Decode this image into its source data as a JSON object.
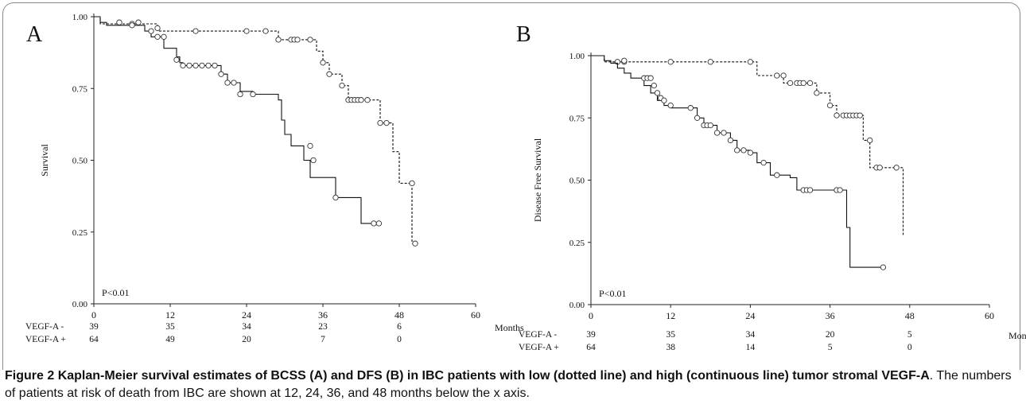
{
  "figure_label": "Figure 2",
  "caption_title": "Kaplan-Meier survival estimates of BCSS (A) and DFS (B) in IBC patients with low (dotted line) and high (continuous line) tumor stromal VEGF-A",
  "caption_text": ". The numbers of patients at risk of death from IBC are shown at 12, 24, 36, and 48 months below the x axis.",
  "chart_data": [
    {
      "type": "line",
      "panel_label": "A",
      "ylabel": "Survival",
      "xlabel": "Months",
      "xlim": [
        0,
        60
      ],
      "ylim": [
        0,
        1
      ],
      "xticks": [
        "0",
        "12",
        "24",
        "36",
        "48",
        "60"
      ],
      "yticks": [
        "0.00",
        "0.25",
        "0.50",
        "0.75",
        "1.00"
      ],
      "pvalue": "P<0.01",
      "grid": false,
      "series": [
        {
          "name": "VEGF-A -",
          "style": "dotted",
          "steps": [
            [
              0,
              1.0
            ],
            [
              1,
              0.975
            ],
            [
              10,
              0.95
            ],
            [
              25,
              0.95
            ],
            [
              27,
              0.95
            ],
            [
              29,
              0.92
            ],
            [
              35,
              0.88
            ],
            [
              36,
              0.84
            ],
            [
              37,
              0.8
            ],
            [
              39,
              0.76
            ],
            [
              40,
              0.71
            ],
            [
              44,
              0.71
            ],
            [
              45,
              0.63
            ],
            [
              47,
              0.53
            ],
            [
              48,
              0.42
            ],
            [
              50,
              0.21
            ]
          ],
          "censored": [
            [
              4,
              0.98
            ],
            [
              6,
              0.975
            ],
            [
              7,
              0.98
            ],
            [
              10,
              0.96
            ],
            [
              16,
              0.95
            ],
            [
              24,
              0.95
            ],
            [
              27,
              0.95
            ],
            [
              29,
              0.92
            ],
            [
              31,
              0.92
            ],
            [
              31.5,
              0.92
            ],
            [
              32,
              0.92
            ],
            [
              34,
              0.92
            ],
            [
              36,
              0.84
            ],
            [
              37,
              0.8
            ],
            [
              39,
              0.76
            ],
            [
              40,
              0.71
            ],
            [
              40.5,
              0.71
            ],
            [
              41,
              0.71
            ],
            [
              41.5,
              0.71
            ],
            [
              42,
              0.71
            ],
            [
              43,
              0.71
            ],
            [
              45,
              0.63
            ],
            [
              46,
              0.63
            ],
            [
              50,
              0.42
            ],
            [
              50.5,
              0.21
            ]
          ]
        },
        {
          "name": "VEGF-A +",
          "style": "solid",
          "steps": [
            [
              0,
              1.0
            ],
            [
              1,
              0.98
            ],
            [
              2,
              0.97
            ],
            [
              8,
              0.95
            ],
            [
              9,
              0.93
            ],
            [
              11,
              0.89
            ],
            [
              13,
              0.86
            ],
            [
              13.5,
              0.84
            ],
            [
              14,
              0.83
            ],
            [
              20,
              0.8
            ],
            [
              21,
              0.77
            ],
            [
              22,
              0.77
            ],
            [
              23,
              0.74
            ],
            [
              25,
              0.73
            ],
            [
              29,
              0.71
            ],
            [
              29.5,
              0.64
            ],
            [
              30,
              0.59
            ],
            [
              31,
              0.55
            ],
            [
              33,
              0.5
            ],
            [
              34,
              0.44
            ],
            [
              37,
              0.44
            ],
            [
              38,
              0.37
            ],
            [
              40,
              0.37
            ],
            [
              42,
              0.28
            ],
            [
              45,
              0.28
            ]
          ],
          "censored": [
            [
              6,
              0.97
            ],
            [
              9,
              0.95
            ],
            [
              10,
              0.93
            ],
            [
              11,
              0.93
            ],
            [
              13,
              0.85
            ],
            [
              14,
              0.83
            ],
            [
              15,
              0.83
            ],
            [
              16,
              0.83
            ],
            [
              17,
              0.83
            ],
            [
              18,
              0.83
            ],
            [
              19,
              0.83
            ],
            [
              20,
              0.8
            ],
            [
              21,
              0.77
            ],
            [
              22,
              0.77
            ],
            [
              23,
              0.73
            ],
            [
              25,
              0.73
            ],
            [
              34,
              0.55
            ],
            [
              34.5,
              0.5
            ],
            [
              38,
              0.37
            ],
            [
              44,
              0.28
            ],
            [
              44.8,
              0.28
            ]
          ]
        }
      ],
      "risk_table": {
        "times": [
          0,
          12,
          24,
          36,
          48
        ],
        "rows": [
          {
            "label": "VEGF-A -",
            "values": [
              "39",
              "35",
              "34",
              "23",
              "6"
            ]
          },
          {
            "label": "VEGF-A +",
            "values": [
              "64",
              "49",
              "20",
              "7",
              "0"
            ]
          }
        ]
      }
    },
    {
      "type": "line",
      "panel_label": "B",
      "ylabel": "Disease Free Survival",
      "xlabel": "Months",
      "xlim": [
        0,
        60
      ],
      "ylim": [
        0,
        1
      ],
      "xticks": [
        "0",
        "12",
        "24",
        "36",
        "48",
        "60"
      ],
      "yticks": [
        "0.00",
        "0.25",
        "0.50",
        "0.75",
        "1.00"
      ],
      "pvalue": "P<0.01",
      "grid": false,
      "series": [
        {
          "name": "VEGF-A -",
          "style": "dotted",
          "steps": [
            [
              0,
              1.0
            ],
            [
              2,
              0.975
            ],
            [
              25,
              0.92
            ],
            [
              28,
              0.92
            ],
            [
              29,
              0.89
            ],
            [
              33,
              0.89
            ],
            [
              34,
              0.85
            ],
            [
              36,
              0.8
            ],
            [
              37,
              0.76
            ],
            [
              40,
              0.76
            ],
            [
              41,
              0.66
            ],
            [
              42,
              0.55
            ],
            [
              46,
              0.55
            ],
            [
              47,
              0.28
            ]
          ],
          "censored": [
            [
              4,
              0.975
            ],
            [
              5,
              0.975
            ],
            [
              12,
              0.975
            ],
            [
              18,
              0.975
            ],
            [
              24,
              0.975
            ],
            [
              28,
              0.92
            ],
            [
              29,
              0.92
            ],
            [
              30,
              0.89
            ],
            [
              31,
              0.89
            ],
            [
              31.5,
              0.89
            ],
            [
              32,
              0.89
            ],
            [
              33,
              0.89
            ],
            [
              34,
              0.85
            ],
            [
              36,
              0.8
            ],
            [
              37,
              0.76
            ],
            [
              38,
              0.76
            ],
            [
              38.5,
              0.76
            ],
            [
              39,
              0.76
            ],
            [
              39.5,
              0.76
            ],
            [
              40,
              0.76
            ],
            [
              40.5,
              0.76
            ],
            [
              42,
              0.66
            ],
            [
              43,
              0.55
            ],
            [
              43.5,
              0.55
            ],
            [
              46,
              0.55
            ]
          ]
        },
        {
          "name": "VEGF-A +",
          "style": "solid",
          "steps": [
            [
              0,
              1.0
            ],
            [
              2,
              0.98
            ],
            [
              3,
              0.97
            ],
            [
              4,
              0.95
            ],
            [
              5,
              0.93
            ],
            [
              6,
              0.91
            ],
            [
              8,
              0.88
            ],
            [
              9,
              0.85
            ],
            [
              10,
              0.82
            ],
            [
              11,
              0.8
            ],
            [
              12,
              0.79
            ],
            [
              15,
              0.79
            ],
            [
              16,
              0.75
            ],
            [
              17,
              0.72
            ],
            [
              19,
              0.69
            ],
            [
              21,
              0.66
            ],
            [
              22,
              0.62
            ],
            [
              24,
              0.61
            ],
            [
              25,
              0.57
            ],
            [
              27,
              0.52
            ],
            [
              30,
              0.51
            ],
            [
              31,
              0.46
            ],
            [
              38,
              0.46
            ],
            [
              38.5,
              0.31
            ],
            [
              39,
              0.15
            ],
            [
              44,
              0.15
            ]
          ],
          "censored": [
            [
              5,
              0.98
            ],
            [
              8,
              0.91
            ],
            [
              8.5,
              0.91
            ],
            [
              9,
              0.91
            ],
            [
              9.5,
              0.88
            ],
            [
              10,
              0.85
            ],
            [
              10.5,
              0.83
            ],
            [
              11,
              0.82
            ],
            [
              12,
              0.8
            ],
            [
              15,
              0.79
            ],
            [
              16,
              0.75
            ],
            [
              17,
              0.72
            ],
            [
              17.5,
              0.72
            ],
            [
              18,
              0.72
            ],
            [
              19,
              0.69
            ],
            [
              20,
              0.69
            ],
            [
              21,
              0.66
            ],
            [
              22,
              0.62
            ],
            [
              23,
              0.62
            ],
            [
              24,
              0.61
            ],
            [
              26,
              0.57
            ],
            [
              28,
              0.52
            ],
            [
              32,
              0.46
            ],
            [
              32.5,
              0.46
            ],
            [
              33,
              0.46
            ],
            [
              37,
              0.46
            ],
            [
              37.5,
              0.46
            ],
            [
              44,
              0.15
            ]
          ]
        }
      ],
      "risk_table": {
        "times": [
          0,
          12,
          24,
          36,
          48
        ],
        "rows": [
          {
            "label": "VEGF-A -",
            "values": [
              "39",
              "35",
              "34",
              "20",
              "5"
            ]
          },
          {
            "label": "VEGF-A +",
            "values": [
              "64",
              "38",
              "14",
              "5",
              "0"
            ]
          }
        ]
      }
    }
  ]
}
